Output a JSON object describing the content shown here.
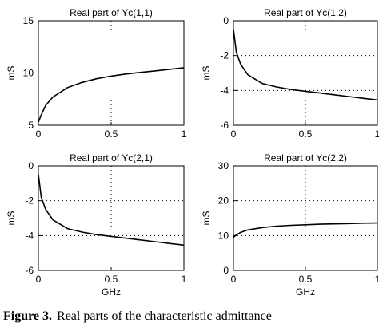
{
  "caption": {
    "label": "Figure 3.",
    "text": "Real parts of the characteristic admittance"
  },
  "chart_data": [
    {
      "type": "line",
      "title": "Real part of Yc(1,1)",
      "xlabel": "",
      "ylabel": "mS",
      "xlim": [
        0,
        1
      ],
      "ylim": [
        5,
        15
      ],
      "xticks": [
        0,
        0.5,
        1
      ],
      "yticks": [
        5,
        10,
        15
      ],
      "grid": true,
      "x": [
        0,
        0.02,
        0.05,
        0.1,
        0.2,
        0.3,
        0.4,
        0.5,
        0.6,
        0.7,
        0.8,
        0.9,
        1.0
      ],
      "y": [
        5.3,
        6.0,
        6.9,
        7.7,
        8.6,
        9.1,
        9.45,
        9.7,
        9.9,
        10.05,
        10.2,
        10.35,
        10.5
      ]
    },
    {
      "type": "line",
      "title": "Real part of Yc(1,2)",
      "xlabel": "",
      "ylabel": "mS",
      "xlim": [
        0,
        1
      ],
      "ylim": [
        -6,
        0
      ],
      "xticks": [
        0,
        0.5,
        1
      ],
      "yticks": [
        -6,
        -4,
        -2,
        0
      ],
      "grid": true,
      "x": [
        0,
        0.02,
        0.05,
        0.1,
        0.2,
        0.3,
        0.4,
        0.5,
        0.6,
        0.7,
        0.8,
        0.9,
        1.0
      ],
      "y": [
        -0.5,
        -1.8,
        -2.5,
        -3.1,
        -3.6,
        -3.8,
        -3.95,
        -4.05,
        -4.15,
        -4.25,
        -4.35,
        -4.45,
        -4.55
      ]
    },
    {
      "type": "line",
      "title": "Real part of Yc(2,1)",
      "xlabel": "GHz",
      "ylabel": "mS",
      "xlim": [
        0,
        1
      ],
      "ylim": [
        -6,
        0
      ],
      "xticks": [
        0,
        0.5,
        1
      ],
      "yticks": [
        -6,
        -4,
        -2,
        0
      ],
      "grid": true,
      "x": [
        0,
        0.02,
        0.05,
        0.1,
        0.2,
        0.3,
        0.4,
        0.5,
        0.6,
        0.7,
        0.8,
        0.9,
        1.0
      ],
      "y": [
        -0.5,
        -1.8,
        -2.5,
        -3.1,
        -3.6,
        -3.8,
        -3.95,
        -4.05,
        -4.15,
        -4.25,
        -4.35,
        -4.45,
        -4.55
      ]
    },
    {
      "type": "line",
      "title": "Real part of Yc(2,2)",
      "xlabel": "GHz",
      "ylabel": "mS",
      "xlim": [
        0,
        1
      ],
      "ylim": [
        0,
        30
      ],
      "xticks": [
        0,
        0.5,
        1
      ],
      "yticks": [
        0,
        10,
        20,
        30
      ],
      "grid": true,
      "x": [
        0,
        0.02,
        0.05,
        0.1,
        0.2,
        0.3,
        0.4,
        0.5,
        0.6,
        0.7,
        0.8,
        0.9,
        1.0
      ],
      "y": [
        9.5,
        10.2,
        10.9,
        11.6,
        12.3,
        12.7,
        12.95,
        13.1,
        13.25,
        13.35,
        13.45,
        13.55,
        13.6
      ]
    }
  ]
}
